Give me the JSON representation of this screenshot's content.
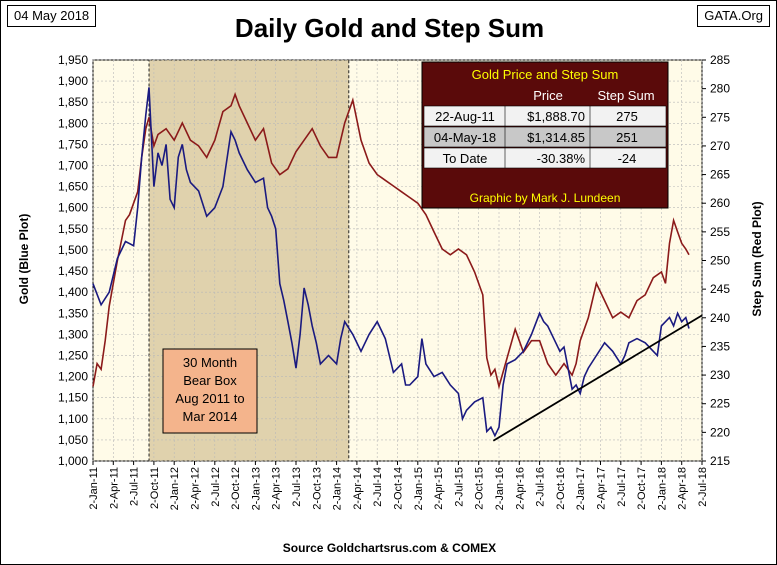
{
  "header": {
    "date_stamp": "04 May 2018",
    "site_stamp": "GATA.Org",
    "title": "Daily Gold and Step Sum"
  },
  "footer": {
    "source": "Source Goldchartsrus.com & COMEX"
  },
  "colors": {
    "gold_line": "#1a1a80",
    "step_line": "#8b1a1a",
    "plot_bg": "#fffbe8",
    "bear_box": "#d6c49a",
    "bear_label_bg": "#f4b48c",
    "table_header_bg": "#5a0a0a",
    "table_title_text": "#ffff00",
    "table_row_light": "#f2f2f2",
    "table_row_mid": "#c8c8c8",
    "trendline": "#000000"
  },
  "annotations": {
    "bear_box_lines": [
      "30 Month",
      "Bear Box",
      "Aug 2011 to",
      "Mar 2014"
    ]
  },
  "table": {
    "title": "Gold Price and Step Sum",
    "col_headers": [
      "",
      "Price",
      "Step Sum"
    ],
    "rows": [
      [
        "22-Aug-11",
        "$1,888.70",
        "275"
      ],
      [
        "04-May-18",
        "$1,314.85",
        "251"
      ],
      [
        "To Date",
        "-30.38%",
        "-24"
      ]
    ],
    "credit": "Graphic by Mark J. Lundeen"
  },
  "chart_data": {
    "type": "line",
    "title": "Daily Gold and Step Sum",
    "ylabel_left": "Gold   (Blue Plot)",
    "ylabel_right": "Step Sum   (Red Plot)",
    "x_ticks": [
      "2-Jan-11",
      "2-Apr-11",
      "2-Jul-11",
      "2-Oct-11",
      "2-Jan-12",
      "2-Apr-12",
      "2-Jul-12",
      "2-Oct-12",
      "2-Jan-13",
      "2-Apr-13",
      "2-Jul-13",
      "2-Oct-13",
      "2-Jan-14",
      "2-Apr-14",
      "2-Jul-14",
      "2-Oct-14",
      "2-Jan-15",
      "2-Apr-15",
      "2-Jul-15",
      "2-Oct-15",
      "2-Jan-16",
      "2-Apr-16",
      "2-Jul-16",
      "2-Oct-16",
      "2-Jan-17",
      "2-Apr-17",
      "2-Jul-17",
      "2-Oct-17",
      "2-Jan-18",
      "2-Apr-18",
      "2-Jul-18"
    ],
    "y_left": {
      "min": 1000,
      "max": 1950,
      "step": 50
    },
    "y_left_ticks": [
      "1,000",
      "1,050",
      "1,100",
      "1,150",
      "1,200",
      "1,250",
      "1,300",
      "1,350",
      "1,400",
      "1,450",
      "1,500",
      "1,550",
      "1,600",
      "1,650",
      "1,700",
      "1,750",
      "1,800",
      "1,850",
      "1,900",
      "1,950"
    ],
    "y_right": {
      "min": 215,
      "max": 285,
      "step": 5
    },
    "y_right_ticks": [
      "215",
      "220",
      "225",
      "230",
      "235",
      "240",
      "245",
      "250",
      "255",
      "260",
      "265",
      "270",
      "275",
      "280",
      "285"
    ],
    "bear_box_range": [
      2011.69,
      2014.15
    ],
    "series": [
      {
        "name": "Gold (Blue Plot)",
        "axis": "left",
        "x": [
          2011.0,
          2011.1,
          2011.2,
          2011.3,
          2011.4,
          2011.5,
          2011.55,
          2011.6,
          2011.65,
          2011.69,
          2011.75,
          2011.8,
          2011.85,
          2011.9,
          2011.95,
          2012.0,
          2012.05,
          2012.1,
          2012.15,
          2012.2,
          2012.3,
          2012.4,
          2012.5,
          2012.6,
          2012.7,
          2012.75,
          2012.8,
          2012.9,
          2013.0,
          2013.1,
          2013.15,
          2013.2,
          2013.25,
          2013.3,
          2013.35,
          2013.4,
          2013.45,
          2013.5,
          2013.55,
          2013.6,
          2013.65,
          2013.7,
          2013.75,
          2013.8,
          2013.9,
          2014.0,
          2014.05,
          2014.1,
          2014.2,
          2014.3,
          2014.4,
          2014.5,
          2014.6,
          2014.7,
          2014.8,
          2014.85,
          2014.9,
          2015.0,
          2015.05,
          2015.1,
          2015.2,
          2015.3,
          2015.4,
          2015.5,
          2015.55,
          2015.6,
          2015.7,
          2015.8,
          2015.85,
          2015.9,
          2015.95,
          2016.0,
          2016.05,
          2016.1,
          2016.2,
          2016.3,
          2016.4,
          2016.5,
          2016.55,
          2016.6,
          2016.7,
          2016.75,
          2016.8,
          2016.9,
          2016.95,
          2017.0,
          2017.05,
          2017.1,
          2017.2,
          2017.3,
          2017.4,
          2017.5,
          2017.55,
          2017.6,
          2017.7,
          2017.8,
          2017.9,
          2017.95,
          2018.0,
          2018.05,
          2018.1,
          2018.15,
          2018.2,
          2018.25,
          2018.3,
          2018.34
        ],
        "values": [
          1420,
          1370,
          1400,
          1480,
          1520,
          1510,
          1600,
          1720,
          1820,
          1885,
          1650,
          1730,
          1700,
          1750,
          1620,
          1600,
          1720,
          1750,
          1690,
          1660,
          1640,
          1580,
          1600,
          1650,
          1780,
          1760,
          1730,
          1690,
          1660,
          1670,
          1600,
          1580,
          1550,
          1420,
          1380,
          1330,
          1280,
          1220,
          1300,
          1410,
          1370,
          1320,
          1280,
          1230,
          1250,
          1230,
          1290,
          1330,
          1300,
          1260,
          1300,
          1330,
          1290,
          1210,
          1230,
          1180,
          1180,
          1200,
          1290,
          1230,
          1200,
          1210,
          1180,
          1160,
          1100,
          1120,
          1140,
          1150,
          1070,
          1080,
          1060,
          1080,
          1180,
          1230,
          1240,
          1260,
          1300,
          1350,
          1330,
          1320,
          1280,
          1260,
          1270,
          1170,
          1180,
          1160,
          1200,
          1220,
          1250,
          1280,
          1260,
          1230,
          1250,
          1280,
          1290,
          1280,
          1260,
          1250,
          1320,
          1330,
          1340,
          1320,
          1350,
          1330,
          1340,
          1314
        ]
      },
      {
        "name": "Step Sum (Red Plot)",
        "axis": "right",
        "x": [
          2011.0,
          2011.05,
          2011.1,
          2011.15,
          2011.2,
          2011.3,
          2011.4,
          2011.45,
          2011.5,
          2011.55,
          2011.6,
          2011.65,
          2011.69,
          2011.75,
          2011.8,
          2011.9,
          2012.0,
          2012.1,
          2012.2,
          2012.3,
          2012.4,
          2012.5,
          2012.6,
          2012.7,
          2012.75,
          2012.8,
          2012.9,
          2013.0,
          2013.1,
          2013.15,
          2013.2,
          2013.3,
          2013.4,
          2013.5,
          2013.6,
          2013.7,
          2013.8,
          2013.9,
          2014.0,
          2014.1,
          2014.2,
          2014.3,
          2014.4,
          2014.5,
          2014.6,
          2014.7,
          2014.8,
          2014.9,
          2015.0,
          2015.1,
          2015.2,
          2015.3,
          2015.4,
          2015.5,
          2015.6,
          2015.7,
          2015.8,
          2015.85,
          2015.9,
          2015.95,
          2016.0,
          2016.1,
          2016.2,
          2016.3,
          2016.4,
          2016.5,
          2016.6,
          2016.7,
          2016.8,
          2016.9,
          2016.95,
          2017.0,
          2017.1,
          2017.2,
          2017.3,
          2017.4,
          2017.5,
          2017.6,
          2017.7,
          2017.8,
          2017.9,
          2018.0,
          2018.05,
          2018.1,
          2018.15,
          2018.2,
          2018.25,
          2018.3,
          2018.34
        ],
        "values": [
          228,
          232,
          231,
          236,
          242,
          250,
          257,
          258,
          260,
          262,
          268,
          273,
          275,
          270,
          272,
          273,
          271,
          274,
          271,
          270,
          268,
          271,
          276,
          277,
          279,
          277,
          274,
          271,
          273,
          270,
          267,
          265,
          266,
          269,
          271,
          273,
          270,
          268,
          268,
          274,
          278,
          271,
          267,
          265,
          264,
          263,
          262,
          261,
          260,
          258,
          255,
          252,
          251,
          252,
          251,
          248,
          244,
          233,
          230,
          231,
          228,
          233,
          238,
          234,
          236,
          236,
          232,
          230,
          232,
          230,
          232,
          236,
          240,
          246,
          243,
          240,
          241,
          240,
          243,
          244,
          247,
          248,
          246,
          253,
          257,
          255,
          253,
          252,
          251
        ]
      }
    ],
    "trendline": {
      "axis": "left",
      "x": [
        2015.93,
        2018.5
      ],
      "values": [
        1048,
        1345
      ]
    }
  }
}
